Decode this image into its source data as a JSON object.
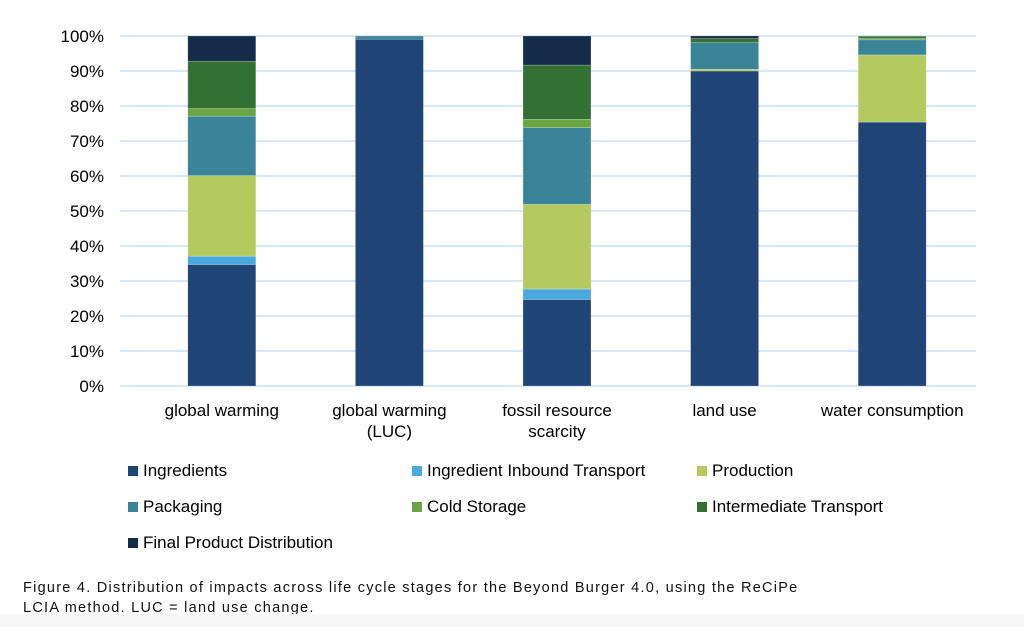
{
  "chart_data": {
    "type": "bar",
    "stacked": true,
    "categories": [
      "global warming",
      "global warming (LUC)",
      "fossil resource scarcity",
      "land use",
      "water consumption"
    ],
    "category_lines": [
      [
        "global warming"
      ],
      [
        "global warming",
        "(LUC)"
      ],
      [
        "fossil resource",
        "scarcity"
      ],
      [
        "land use"
      ],
      [
        "water consumption"
      ]
    ],
    "ylim": [
      0,
      100
    ],
    "yticks": [
      "0%",
      "10%",
      "20%",
      "30%",
      "40%",
      "50%",
      "60%",
      "70%",
      "80%",
      "90%",
      "100%"
    ],
    "grid": true,
    "legend_position": "bottom",
    "series": [
      {
        "name": "Ingredients",
        "color": "#1e4576",
        "values": [
          34.7,
          99.1,
          24.7,
          90.0,
          75.4
        ]
      },
      {
        "name": "Ingredient Inbound Transport",
        "color": "#4aa8de",
        "values": [
          2.4,
          0,
          3.0,
          0,
          0
        ]
      },
      {
        "name": "Production",
        "color": "#b5c95f",
        "values": [
          23.0,
          0,
          24.2,
          0.5,
          19.2
        ]
      },
      {
        "name": "Packaging",
        "color": "#3a8499",
        "values": [
          17.0,
          0.9,
          21.9,
          7.6,
          4.3
        ]
      },
      {
        "name": "Cold Storage",
        "color": "#6aa444",
        "values": [
          2.2,
          0,
          2.4,
          0,
          0.4
        ]
      },
      {
        "name": "Intermediate Transport",
        "color": "#327133",
        "values": [
          13.5,
          0,
          15.5,
          1.2,
          0.6
        ]
      },
      {
        "name": "Final Product Distribution",
        "color": "#142b4a",
        "values": [
          7.2,
          0,
          8.3,
          0.7,
          0.1
        ]
      }
    ]
  },
  "caption": {
    "line1": "Figure 4. Distribution of impacts across life cycle stages for the Beyond Burger 4.0, using the ReCiPe",
    "line2": "LCIA method. LUC = land use change."
  }
}
